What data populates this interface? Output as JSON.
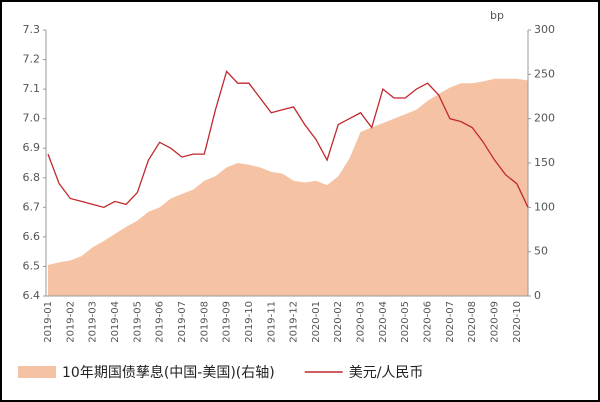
{
  "chart_data": {
    "type": "area-line",
    "categories": [
      "2019-01",
      null,
      "2019-02",
      null,
      "2019-03",
      null,
      "2019-04",
      null,
      "2019-05",
      null,
      "2019-06",
      null,
      "2019-07",
      null,
      "2019-08",
      null,
      "2019-09",
      null,
      "2019-10",
      null,
      "2019-11",
      null,
      "2019-12",
      null,
      "2020-01",
      null,
      "2020-02",
      null,
      "2020-03",
      null,
      "2020-04",
      null,
      "2020-05",
      null,
      "2020-06",
      null,
      "2020-07",
      null,
      "2020-08",
      null,
      "2020-09",
      null,
      "2020-10",
      null
    ],
    "series": [
      {
        "name": "10年期国债孳息(中国-美国)(右轴)",
        "color": "#f5c3a4",
        "axis": "y2",
        "kind": "area",
        "values": [
          35,
          38,
          40,
          45,
          55,
          62,
          70,
          78,
          85,
          95,
          100,
          110,
          115,
          120,
          130,
          135,
          145,
          150,
          148,
          145,
          140,
          138,
          130,
          128,
          130,
          125,
          135,
          155,
          185,
          190,
          195,
          200,
          205,
          210,
          220,
          228,
          235,
          240,
          240,
          242,
          245,
          245,
          245,
          243
        ]
      },
      {
        "name": "美元/人民币",
        "color": "#c0282d",
        "axis": "y",
        "kind": "line",
        "values": [
          6.88,
          6.78,
          6.73,
          6.72,
          6.71,
          6.7,
          6.72,
          6.71,
          6.75,
          6.86,
          6.92,
          6.9,
          6.87,
          6.88,
          6.88,
          7.03,
          7.16,
          7.12,
          7.12,
          7.07,
          7.02,
          7.03,
          7.04,
          6.98,
          6.93,
          6.86,
          6.98,
          7.0,
          7.02,
          6.97,
          7.1,
          7.07,
          7.07,
          7.1,
          7.12,
          7.08,
          7.0,
          6.99,
          6.97,
          6.92,
          6.86,
          6.81,
          6.78,
          6.7
        ]
      }
    ],
    "ylim": [
      6.4,
      7.3
    ],
    "yticks": [
      6.4,
      6.5,
      6.6,
      6.7,
      6.8,
      6.9,
      {
        "value": 7,
        "label": "7.0"
      },
      7.1,
      7.2,
      7.3
    ],
    "y2lim": [
      0,
      300
    ],
    "y2ticks": [
      0,
      50,
      100,
      150,
      200,
      250,
      300
    ],
    "y2_label": "bp"
  }
}
